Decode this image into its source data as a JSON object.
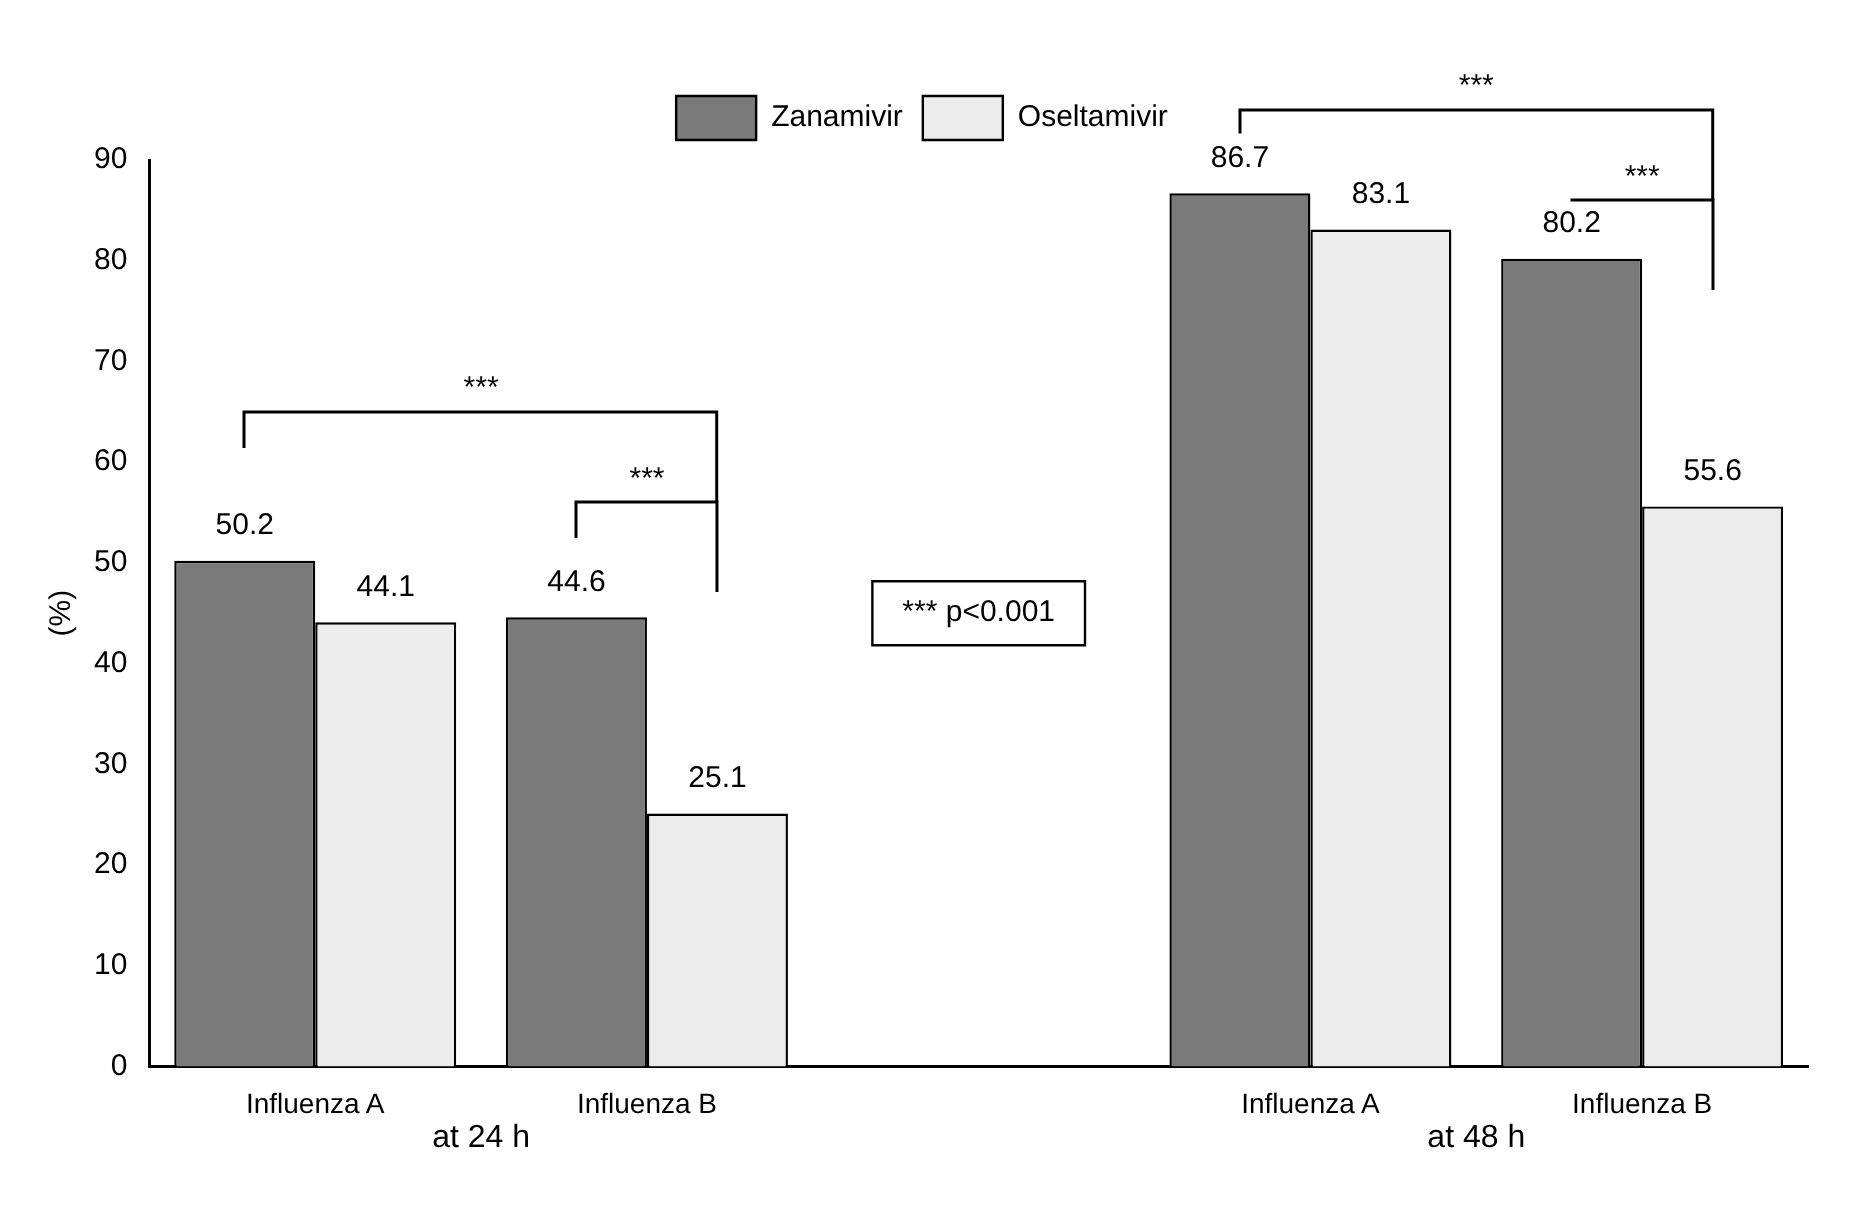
{
  "chart_data": {
    "type": "bar",
    "ylabel": "(%)",
    "categories": [
      "Influenza A",
      "Influenza B",
      null,
      "Influenza A",
      "Influenza B"
    ],
    "series": [
      {
        "name": "Zanamivir",
        "color": "#7a7a7a",
        "values": [
          50.2,
          44.6,
          null,
          86.7,
          80.2
        ]
      },
      {
        "name": "Oseltamivir",
        "color": "#ececec",
        "values": [
          44.1,
          25.1,
          null,
          83.1,
          55.6
        ]
      }
    ],
    "ylim": [
      0,
      90
    ],
    "yticks": [
      0,
      10,
      20,
      30,
      40,
      50,
      60,
      70,
      80,
      90
    ],
    "grid": false,
    "legend": "top",
    "data_labels": true,
    "annotations": [
      "***",
      "***",
      "***",
      "***",
      "*** p<0.001",
      "at 24 h",
      "at 48 h"
    ]
  }
}
